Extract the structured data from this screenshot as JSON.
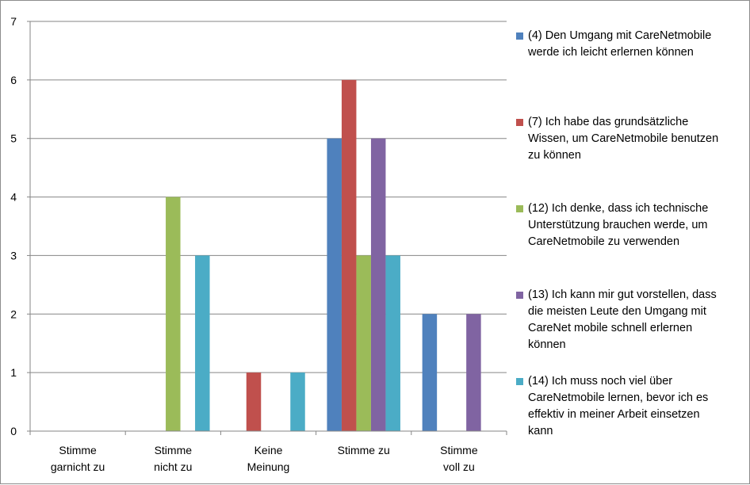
{
  "chart_data": {
    "type": "bar",
    "title": "",
    "xlabel": "",
    "ylabel": "",
    "ylim": [
      0,
      7
    ],
    "yticks": [
      "0",
      "1",
      "2",
      "3",
      "4",
      "5",
      "6",
      "7"
    ],
    "grid": true,
    "legend_position": "right",
    "categories": [
      [
        "Stimme",
        "garnicht zu"
      ],
      [
        "Stimme",
        "nicht zu"
      ],
      [
        "Keine",
        "Meinung"
      ],
      [
        "Stimme zu"
      ],
      [
        "Stimme",
        "voll zu"
      ]
    ],
    "series": [
      {
        "name": "(4) Den Umgang mit CareNetmobile werde ich leicht erlernen können",
        "color": "#4f81bd",
        "values": [
          0,
          0,
          0,
          5,
          2
        ]
      },
      {
        "name": "(7) Ich habe das grundsätzliche Wissen, um CareNetmobile benutzen zu können",
        "color": "#c0504d",
        "values": [
          0,
          0,
          1,
          6,
          0
        ]
      },
      {
        "name": "(12) Ich denke, dass ich technische Unterstützung brauchen werde, um CareNetmobile zu verwenden",
        "color": "#9bbb59",
        "values": [
          0,
          4,
          0,
          3,
          0
        ]
      },
      {
        "name": "(13) Ich kann mir gut vorstellen, dass die meisten Leute den Umgang mit CareNet mobile schnell erlernen können",
        "color": "#8064a2",
        "values": [
          0,
          0,
          0,
          5,
          2
        ]
      },
      {
        "name": "(14) Ich muss noch viel über CareNetmobile lernen, bevor ich es effektiv in meiner Arbeit einsetzen kann",
        "color": "#4bacc6",
        "values": [
          0,
          3,
          1,
          3,
          0
        ]
      }
    ]
  }
}
